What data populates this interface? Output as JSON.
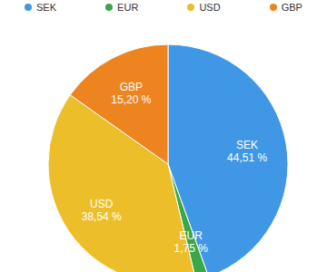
{
  "chart_data": {
    "type": "pie",
    "categories": [
      "SEK",
      "EUR",
      "USD",
      "GBP"
    ],
    "values": [
      44.51,
      1.75,
      38.54,
      15.2
    ],
    "value_labels": [
      "44,51 %",
      "1,75 %",
      "38,54 %",
      "15,20 %"
    ],
    "colors": [
      "#3f97e6",
      "#3aa848",
      "#ecbf2a",
      "#ee8420"
    ],
    "data_labels": true,
    "legend": "top"
  }
}
